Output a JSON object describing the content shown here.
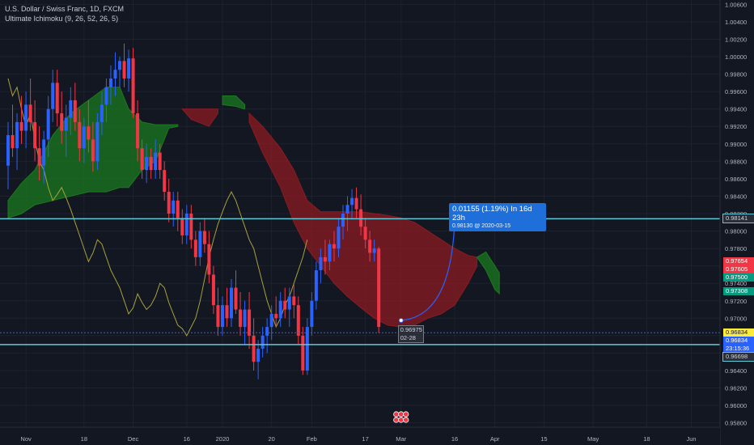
{
  "legend": {
    "symbol": "U.S. Dollar / Swiss Franc, 1D, FXCM",
    "indicator": "Ultimate Ichimoku (9, 26, 52, 26, 5)"
  },
  "measure": {
    "line1": "0.01155 (1.19%) In 16d 23h",
    "line2": "0.98130 @ 2020-03-15"
  },
  "price_tag": {
    "value": "0.96975",
    "date": "02-28"
  },
  "price_labels": [
    {
      "text": "0.98141",
      "bg": "#2a2e39",
      "fg": "#d1d4dc",
      "border": "#5fc9d6",
      "value": 0.98141
    },
    {
      "text": "0.97654",
      "bg": "#f23645",
      "fg": "#ffffff",
      "border": "",
      "value": 0.97654
    },
    {
      "text": "0.97605",
      "bg": "#f23645",
      "fg": "#ffffff",
      "border": "",
      "value": 0.97605
    },
    {
      "text": "0.97500",
      "bg": "#089981",
      "fg": "#ffffff",
      "border": "",
      "value": 0.975
    },
    {
      "text": "0.97308",
      "bg": "#089981",
      "fg": "#ffffff",
      "border": "",
      "value": 0.97308
    },
    {
      "text": "0.96834",
      "bg": "#ffeb3b",
      "fg": "#131722",
      "border": "",
      "value": 0.96834
    },
    {
      "text": "0.96834",
      "bg": "#2962ff",
      "fg": "#ffffff",
      "border": "",
      "value": 0.96834
    },
    {
      "text": "23:15:36",
      "bg": "#2962ff",
      "fg": "#ffffff",
      "border": "",
      "value": 0.96768
    },
    {
      "text": "0.96698",
      "bg": "#2a2e39",
      "fg": "#d1d4dc",
      "border": "#5fc9d6",
      "value": 0.96698
    }
  ],
  "chart_data": {
    "type": "candlestick",
    "title": "U.S. Dollar / Swiss Franc, 1D, FXCM",
    "ylim": [
      0.9575,
      1.0065
    ],
    "y_ticks": [
      "1.00600",
      "1.00400",
      "1.00200",
      "1.00000",
      "0.99800",
      "0.99600",
      "0.99400",
      "0.99200",
      "0.99000",
      "0.98800",
      "0.98600",
      "0.98400",
      "0.98200",
      "0.98000",
      "0.97800",
      "0.97600",
      "0.97400",
      "0.97200",
      "0.97000",
      "0.96800",
      "0.96600",
      "0.96400",
      "0.96200",
      "0.96000",
      "0.95800"
    ],
    "y_tick_values": [
      1.006,
      1.004,
      1.002,
      1.0,
      0.998,
      0.996,
      0.994,
      0.992,
      0.99,
      0.988,
      0.986,
      0.984,
      0.982,
      0.98,
      0.978,
      0.976,
      0.974,
      0.972,
      0.97,
      0.968,
      0.966,
      0.964,
      0.962,
      0.96,
      0.958
    ],
    "x_ticks": [
      "Nov",
      "18",
      "Dec",
      "16",
      "2020",
      "20",
      "Feb",
      "17",
      "Mar",
      "16",
      "Apr",
      "15",
      "May",
      "18",
      "Jun"
    ],
    "x_tick_index": [
      4,
      17,
      28,
      40,
      48,
      59,
      68,
      80,
      88,
      100,
      109,
      120,
      131,
      143,
      153
    ],
    "horizontal_lines": [
      0.98141,
      0.96698
    ],
    "dotted_line": 0.96834,
    "colors": {
      "up": "#2962ff",
      "down": "#f23645",
      "chikou": "#a8a03d",
      "cloud_bull": "#1b7a1f",
      "cloud_bear": "#8c1b22",
      "hline": "#5fc9d6"
    },
    "candles": [
      {
        "o": 0.9875,
        "h": 0.9925,
        "l": 0.9848,
        "c": 0.991
      },
      {
        "o": 0.991,
        "h": 0.9945,
        "l": 0.9885,
        "c": 0.9895
      },
      {
        "o": 0.9895,
        "h": 0.9935,
        "l": 0.987,
        "c": 0.9925
      },
      {
        "o": 0.9925,
        "h": 0.9955,
        "l": 0.99,
        "c": 0.9915
      },
      {
        "o": 0.9915,
        "h": 0.996,
        "l": 0.9895,
        "c": 0.9945
      },
      {
        "o": 0.9945,
        "h": 0.9975,
        "l": 0.9915,
        "c": 0.9925
      },
      {
        "o": 0.9925,
        "h": 0.995,
        "l": 0.988,
        "c": 0.9895
      },
      {
        "o": 0.9895,
        "h": 0.992,
        "l": 0.9858,
        "c": 0.9875
      },
      {
        "o": 0.9875,
        "h": 0.9915,
        "l": 0.9855,
        "c": 0.9905
      },
      {
        "o": 0.9905,
        "h": 0.9955,
        "l": 0.9885,
        "c": 0.994
      },
      {
        "o": 0.994,
        "h": 0.9985,
        "l": 0.9925,
        "c": 0.997
      },
      {
        "o": 0.997,
        "h": 0.9985,
        "l": 0.992,
        "c": 0.9935
      },
      {
        "o": 0.9935,
        "h": 0.996,
        "l": 0.99,
        "c": 0.9915
      },
      {
        "o": 0.9915,
        "h": 0.9945,
        "l": 0.9885,
        "c": 0.993
      },
      {
        "o": 0.993,
        "h": 0.9965,
        "l": 0.991,
        "c": 0.995
      },
      {
        "o": 0.995,
        "h": 0.997,
        "l": 0.9915,
        "c": 0.9925
      },
      {
        "o": 0.9925,
        "h": 0.994,
        "l": 0.988,
        "c": 0.9895
      },
      {
        "o": 0.9895,
        "h": 0.993,
        "l": 0.9878,
        "c": 0.992
      },
      {
        "o": 0.992,
        "h": 0.995,
        "l": 0.989,
        "c": 0.9905
      },
      {
        "o": 0.9905,
        "h": 0.9925,
        "l": 0.9868,
        "c": 0.988
      },
      {
        "o": 0.988,
        "h": 0.9935,
        "l": 0.987,
        "c": 0.9925
      },
      {
        "o": 0.9925,
        "h": 0.996,
        "l": 0.991,
        "c": 0.9945
      },
      {
        "o": 0.9945,
        "h": 0.9975,
        "l": 0.9925,
        "c": 0.9965
      },
      {
        "o": 0.9965,
        "h": 0.999,
        "l": 0.9945,
        "c": 0.9975
      },
      {
        "o": 0.9975,
        "h": 1.0005,
        "l": 0.9955,
        "c": 0.9985
      },
      {
        "o": 0.9985,
        "h": 1.0,
        "l": 0.9965,
        "c": 0.9995
      },
      {
        "o": 0.9995,
        "h": 1.0015,
        "l": 0.9965,
        "c": 0.9975
      },
      {
        "o": 0.9975,
        "h": 1.0008,
        "l": 0.996,
        "c": 0.9998
      },
      {
        "o": 0.9998,
        "h": 1.001,
        "l": 0.993,
        "c": 0.9935
      },
      {
        "o": 0.9935,
        "h": 0.995,
        "l": 0.988,
        "c": 0.9895
      },
      {
        "o": 0.9895,
        "h": 0.9905,
        "l": 0.986,
        "c": 0.987
      },
      {
        "o": 0.987,
        "h": 0.99,
        "l": 0.9855,
        "c": 0.9885
      },
      {
        "o": 0.9885,
        "h": 0.9895,
        "l": 0.986,
        "c": 0.987
      },
      {
        "o": 0.987,
        "h": 0.9905,
        "l": 0.986,
        "c": 0.989
      },
      {
        "o": 0.989,
        "h": 0.99,
        "l": 0.986,
        "c": 0.987
      },
      {
        "o": 0.987,
        "h": 0.988,
        "l": 0.9835,
        "c": 0.9845
      },
      {
        "o": 0.9845,
        "h": 0.986,
        "l": 0.981,
        "c": 0.982
      },
      {
        "o": 0.982,
        "h": 0.9845,
        "l": 0.9805,
        "c": 0.9835
      },
      {
        "o": 0.9835,
        "h": 0.9845,
        "l": 0.98,
        "c": 0.9815
      },
      {
        "o": 0.9815,
        "h": 0.9825,
        "l": 0.9785,
        "c": 0.9795
      },
      {
        "o": 0.9795,
        "h": 0.983,
        "l": 0.9785,
        "c": 0.982
      },
      {
        "o": 0.982,
        "h": 0.983,
        "l": 0.978,
        "c": 0.979
      },
      {
        "o": 0.979,
        "h": 0.98,
        "l": 0.976,
        "c": 0.977
      },
      {
        "o": 0.977,
        "h": 0.981,
        "l": 0.976,
        "c": 0.98
      },
      {
        "o": 0.98,
        "h": 0.9815,
        "l": 0.9775,
        "c": 0.9785
      },
      {
        "o": 0.9785,
        "h": 0.98,
        "l": 0.974,
        "c": 0.975
      },
      {
        "o": 0.975,
        "h": 0.976,
        "l": 0.9705,
        "c": 0.9715
      },
      {
        "o": 0.9715,
        "h": 0.9735,
        "l": 0.968,
        "c": 0.969
      },
      {
        "o": 0.969,
        "h": 0.9725,
        "l": 0.968,
        "c": 0.9715
      },
      {
        "o": 0.9715,
        "h": 0.9735,
        "l": 0.969,
        "c": 0.97
      },
      {
        "o": 0.97,
        "h": 0.9745,
        "l": 0.969,
        "c": 0.9735
      },
      {
        "o": 0.9735,
        "h": 0.9755,
        "l": 0.9705,
        "c": 0.971
      },
      {
        "o": 0.971,
        "h": 0.973,
        "l": 0.968,
        "c": 0.969
      },
      {
        "o": 0.969,
        "h": 0.972,
        "l": 0.967,
        "c": 0.971
      },
      {
        "o": 0.971,
        "h": 0.973,
        "l": 0.9665,
        "c": 0.968
      },
      {
        "o": 0.968,
        "h": 0.97,
        "l": 0.964,
        "c": 0.965
      },
      {
        "o": 0.965,
        "h": 0.9675,
        "l": 0.963,
        "c": 0.9665
      },
      {
        "o": 0.9665,
        "h": 0.969,
        "l": 0.9655,
        "c": 0.968
      },
      {
        "o": 0.968,
        "h": 0.97,
        "l": 0.966,
        "c": 0.969
      },
      {
        "o": 0.969,
        "h": 0.9715,
        "l": 0.9675,
        "c": 0.9705
      },
      {
        "o": 0.9705,
        "h": 0.9725,
        "l": 0.969,
        "c": 0.97
      },
      {
        "o": 0.97,
        "h": 0.973,
        "l": 0.969,
        "c": 0.972
      },
      {
        "o": 0.972,
        "h": 0.9735,
        "l": 0.97,
        "c": 0.971
      },
      {
        "o": 0.971,
        "h": 0.9735,
        "l": 0.969,
        "c": 0.9725
      },
      {
        "o": 0.9725,
        "h": 0.974,
        "l": 0.97,
        "c": 0.9715
      },
      {
        "o": 0.9715,
        "h": 0.9725,
        "l": 0.967,
        "c": 0.968
      },
      {
        "o": 0.968,
        "h": 0.969,
        "l": 0.9635,
        "c": 0.964
      },
      {
        "o": 0.964,
        "h": 0.97,
        "l": 0.9635,
        "c": 0.969
      },
      {
        "o": 0.969,
        "h": 0.973,
        "l": 0.968,
        "c": 0.972
      },
      {
        "o": 0.972,
        "h": 0.9765,
        "l": 0.971,
        "c": 0.9755
      },
      {
        "o": 0.9755,
        "h": 0.978,
        "l": 0.974,
        "c": 0.977
      },
      {
        "o": 0.977,
        "h": 0.979,
        "l": 0.975,
        "c": 0.9765
      },
      {
        "o": 0.9765,
        "h": 0.979,
        "l": 0.9755,
        "c": 0.9785
      },
      {
        "o": 0.9785,
        "h": 0.98,
        "l": 0.9765,
        "c": 0.978
      },
      {
        "o": 0.978,
        "h": 0.9815,
        "l": 0.977,
        "c": 0.9805
      },
      {
        "o": 0.9805,
        "h": 0.983,
        "l": 0.979,
        "c": 0.982
      },
      {
        "o": 0.982,
        "h": 0.984,
        "l": 0.98,
        "c": 0.983
      },
      {
        "o": 0.983,
        "h": 0.9848,
        "l": 0.9815,
        "c": 0.9838
      },
      {
        "o": 0.9838,
        "h": 0.985,
        "l": 0.9815,
        "c": 0.9825
      },
      {
        "o": 0.9825,
        "h": 0.9842,
        "l": 0.9795,
        "c": 0.9805
      },
      {
        "o": 0.9805,
        "h": 0.9815,
        "l": 0.978,
        "c": 0.979
      },
      {
        "o": 0.979,
        "h": 0.98,
        "l": 0.9765,
        "c": 0.9775
      },
      {
        "o": 0.9775,
        "h": 0.979,
        "l": 0.9765,
        "c": 0.978
      },
      {
        "o": 0.978,
        "h": 0.9782,
        "l": 0.9683,
        "c": 0.969
      }
    ],
    "chikou": [
      0.9975,
      0.9955,
      0.9965,
      0.994,
      0.992,
      0.9935,
      0.9905,
      0.988,
      0.987,
      0.985,
      0.9835,
      0.9842,
      0.985,
      0.9838,
      0.9825,
      0.981,
      0.9795,
      0.978,
      0.9765,
      0.9775,
      0.979,
      0.9785,
      0.977,
      0.9755,
      0.9745,
      0.9735,
      0.972,
      0.9705,
      0.9712,
      0.9728,
      0.9718,
      0.971,
      0.9715,
      0.9725,
      0.974,
      0.9735,
      0.9718,
      0.9705,
      0.9692,
      0.9688,
      0.968,
      0.969,
      0.97,
      0.972,
      0.9745,
      0.977,
      0.979,
      0.9808,
      0.9822,
      0.9835,
      0.9845,
      0.9835,
      0.982,
      0.9805,
      0.979,
      0.978,
      0.976,
      0.974,
      0.972,
      0.9705,
      0.969,
      0.97,
      0.9715,
      0.9725,
      0.974,
      0.9755,
      0.977,
      0.979
    ],
    "chikou_start_index": 0,
    "bull_cloud": [
      {
        "i": 0,
        "top": 0.9835,
        "bot": 0.9815
      },
      {
        "i": 3,
        "top": 0.9855,
        "bot": 0.982
      },
      {
        "i": 6,
        "top": 0.987,
        "bot": 0.983
      },
      {
        "i": 10,
        "top": 0.991,
        "bot": 0.9835
      },
      {
        "i": 14,
        "top": 0.9935,
        "bot": 0.984
      },
      {
        "i": 18,
        "top": 0.995,
        "bot": 0.9845
      },
      {
        "i": 22,
        "top": 0.9965,
        "bot": 0.9845
      },
      {
        "i": 25,
        "top": 0.9965,
        "bot": 0.985
      },
      {
        "i": 27,
        "top": 0.994,
        "bot": 0.985
      },
      {
        "i": 30,
        "top": 0.9925,
        "bot": 0.987
      },
      {
        "i": 33,
        "top": 0.9922,
        "bot": 0.988
      },
      {
        "i": 36,
        "top": 0.9922,
        "bot": 0.9918
      },
      {
        "i": 38,
        "top": 0.9922,
        "bot": 0.992
      }
    ],
    "bull_cloud_2": [
      {
        "i": 48,
        "top": 0.9955,
        "bot": 0.9945
      },
      {
        "i": 51,
        "top": 0.9955,
        "bot": 0.9943
      },
      {
        "i": 53,
        "top": 0.9945,
        "bot": 0.994
      }
    ],
    "bear_cloud_1": [
      {
        "i": 39,
        "top": 0.994,
        "bot": 0.994
      },
      {
        "i": 41,
        "top": 0.994,
        "bot": 0.9928
      },
      {
        "i": 45,
        "top": 0.994,
        "bot": 0.992
      },
      {
        "i": 47,
        "top": 0.994,
        "bot": 0.9935
      }
    ],
    "bear_cloud_2": [
      {
        "i": 54,
        "top": 0.9935,
        "bot": 0.9925
      },
      {
        "i": 57,
        "top": 0.992,
        "bot": 0.989
      },
      {
        "i": 61,
        "top": 0.9895,
        "bot": 0.985
      },
      {
        "i": 64,
        "top": 0.987,
        "bot": 0.981
      },
      {
        "i": 67,
        "top": 0.9835,
        "bot": 0.978
      },
      {
        "i": 70,
        "top": 0.9822,
        "bot": 0.976
      },
      {
        "i": 73,
        "top": 0.9822,
        "bot": 0.974
      },
      {
        "i": 76,
        "top": 0.9822,
        "bot": 0.9725
      },
      {
        "i": 79,
        "top": 0.9822,
        "bot": 0.9712
      },
      {
        "i": 82,
        "top": 0.982,
        "bot": 0.97
      },
      {
        "i": 85,
        "top": 0.9818,
        "bot": 0.9692
      },
      {
        "i": 88,
        "top": 0.9815,
        "bot": 0.969
      },
      {
        "i": 91,
        "top": 0.981,
        "bot": 0.9692
      },
      {
        "i": 94,
        "top": 0.98,
        "bot": 0.97
      },
      {
        "i": 97,
        "top": 0.979,
        "bot": 0.9705
      },
      {
        "i": 100,
        "top": 0.978,
        "bot": 0.9715
      },
      {
        "i": 103,
        "top": 0.9772,
        "bot": 0.974
      },
      {
        "i": 105,
        "top": 0.977,
        "bot": 0.976
      }
    ],
    "bull_cloud_3": [
      {
        "i": 105,
        "top": 0.977,
        "bot": 0.977
      },
      {
        "i": 107,
        "top": 0.9776,
        "bot": 0.9755
      },
      {
        "i": 109,
        "top": 0.976,
        "bot": 0.9733
      },
      {
        "i": 110,
        "top": 0.9752,
        "bot": 0.9728
      }
    ],
    "projection": {
      "from_index": 88,
      "from_value": 0.96975,
      "to_index": 100,
      "to_value": 0.9813
    }
  }
}
